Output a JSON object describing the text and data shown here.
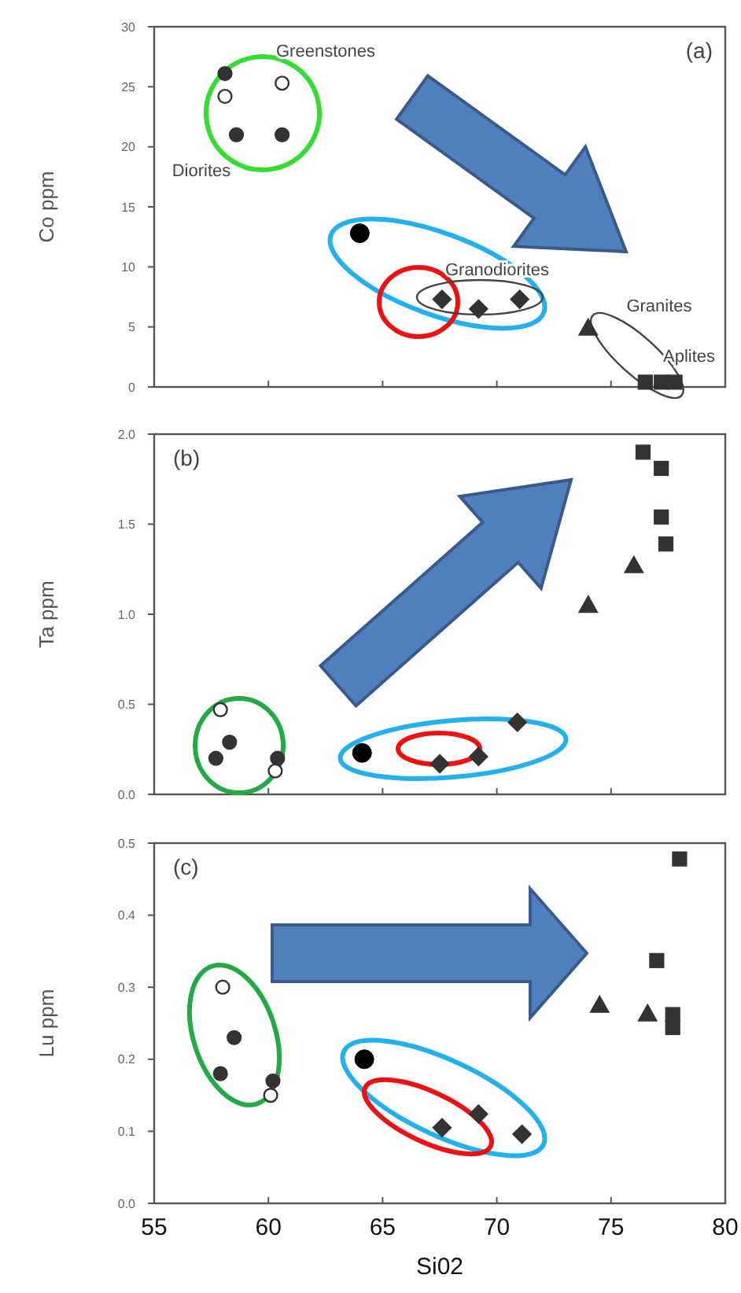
{
  "chart_data": [
    {
      "type": "scatter",
      "ylabel": "Co ppm",
      "xlim": [
        55,
        80
      ],
      "xticks": [
        55,
        60,
        65,
        70,
        75,
        80
      ],
      "ylim": [
        0,
        30
      ],
      "yticks": [
        0,
        5,
        10,
        15,
        20,
        25,
        30
      ],
      "tick_labels": "y",
      "grid": false,
      "annotations": [
        "(a)",
        "Greenstones",
        "Diorites",
        "Granodiorites",
        "Granites",
        "Aplites"
      ],
      "series": [
        {
          "color": "#ffffff",
          "marker": "circle",
          "x": [
            60.6,
            58.1
          ],
          "values": [
            25.3,
            24.2
          ]
        },
        {
          "color": "#333333",
          "marker": "circle",
          "x": [
            58.1,
            58.6,
            60.6
          ],
          "values": [
            26.1,
            21.0,
            21.0
          ]
        },
        {
          "color": "#000000",
          "marker": "circle",
          "x": [
            64.0
          ],
          "values": [
            12.8
          ]
        },
        {
          "color": "#333333",
          "marker": "diamond",
          "x": [
            67.6,
            69.2,
            71.0
          ],
          "values": [
            7.3,
            6.5,
            7.3
          ]
        },
        {
          "color": "#333333",
          "marker": "triangle",
          "x": [
            74.0
          ],
          "values": [
            4.9
          ]
        },
        {
          "color": "#333333",
          "marker": "square",
          "x": [
            76.5,
            77.2,
            77.8
          ],
          "values": [
            0.4,
            0.4,
            0.4
          ]
        }
      ]
    },
    {
      "type": "scatter",
      "ylabel": "Ta ppm",
      "xlim": [
        55,
        80
      ],
      "xticks": [
        55,
        60,
        65,
        70,
        75,
        80
      ],
      "ylim": [
        0,
        2
      ],
      "yticks": [
        {
          "value": 0,
          "label": "0.0"
        },
        {
          "value": 0.5,
          "label": "0.5"
        },
        {
          "value": 1,
          "label": "1.0"
        },
        {
          "value": 1.5,
          "label": "1.5"
        },
        {
          "value": 2,
          "label": "2.0"
        }
      ],
      "tick_labels": "y",
      "grid": false,
      "annotations": [
        "(b)"
      ],
      "series": [
        {
          "color": "#ffffff",
          "marker": "circle",
          "x": [
            57.9,
            60.3
          ],
          "values": [
            0.47,
            0.13
          ]
        },
        {
          "color": "#333333",
          "marker": "circle",
          "x": [
            58.3,
            57.7,
            60.4
          ],
          "values": [
            0.29,
            0.2,
            0.2
          ]
        },
        {
          "color": "#000000",
          "marker": "circle",
          "x": [
            64.1
          ],
          "values": [
            0.23
          ]
        },
        {
          "color": "#333333",
          "marker": "diamond",
          "x": [
            67.5,
            69.2,
            70.9
          ],
          "values": [
            0.17,
            0.21,
            0.4
          ]
        },
        {
          "color": "#333333",
          "marker": "triangle",
          "x": [
            74.0,
            76.0
          ],
          "values": [
            1.05,
            1.27
          ]
        },
        {
          "color": "#333333",
          "marker": "square",
          "x": [
            76.4,
            77.2,
            77.2,
            77.4
          ],
          "values": [
            1.9,
            1.81,
            1.54,
            1.39
          ]
        }
      ]
    },
    {
      "type": "scatter",
      "xlabel": "Si02",
      "ylabel": "Lu ppm",
      "xlim": [
        55,
        80
      ],
      "xticks": [
        55,
        60,
        65,
        70,
        75,
        80
      ],
      "ylim": [
        0,
        0.5
      ],
      "yticks": [
        {
          "value": 0,
          "label": "0.0"
        },
        0.1,
        0.2,
        0.3,
        0.4,
        0.5
      ],
      "grid": false,
      "annotations": [
        "(c)"
      ],
      "series": [
        {
          "color": "#ffffff",
          "marker": "circle",
          "x": [
            58.0,
            60.1
          ],
          "values": [
            0.3,
            0.15
          ]
        },
        {
          "color": "#333333",
          "marker": "circle",
          "x": [
            58.5,
            57.9,
            60.2
          ],
          "values": [
            0.23,
            0.18,
            0.17
          ]
        },
        {
          "color": "#000000",
          "marker": "circle",
          "x": [
            64.2
          ],
          "values": [
            0.2
          ]
        },
        {
          "color": "#333333",
          "marker": "diamond",
          "x": [
            67.6,
            69.2,
            71.1
          ],
          "values": [
            0.105,
            0.124,
            0.096
          ]
        },
        {
          "color": "#333333",
          "marker": "triangle",
          "x": [
            74.5,
            76.6
          ],
          "values": [
            0.275,
            0.263
          ]
        },
        {
          "color": "#333333",
          "marker": "square",
          "x": [
            78.0,
            77.0,
            77.7,
            77.7
          ],
          "values": [
            0.478,
            0.337,
            0.262,
            0.244
          ]
        }
      ]
    }
  ]
}
